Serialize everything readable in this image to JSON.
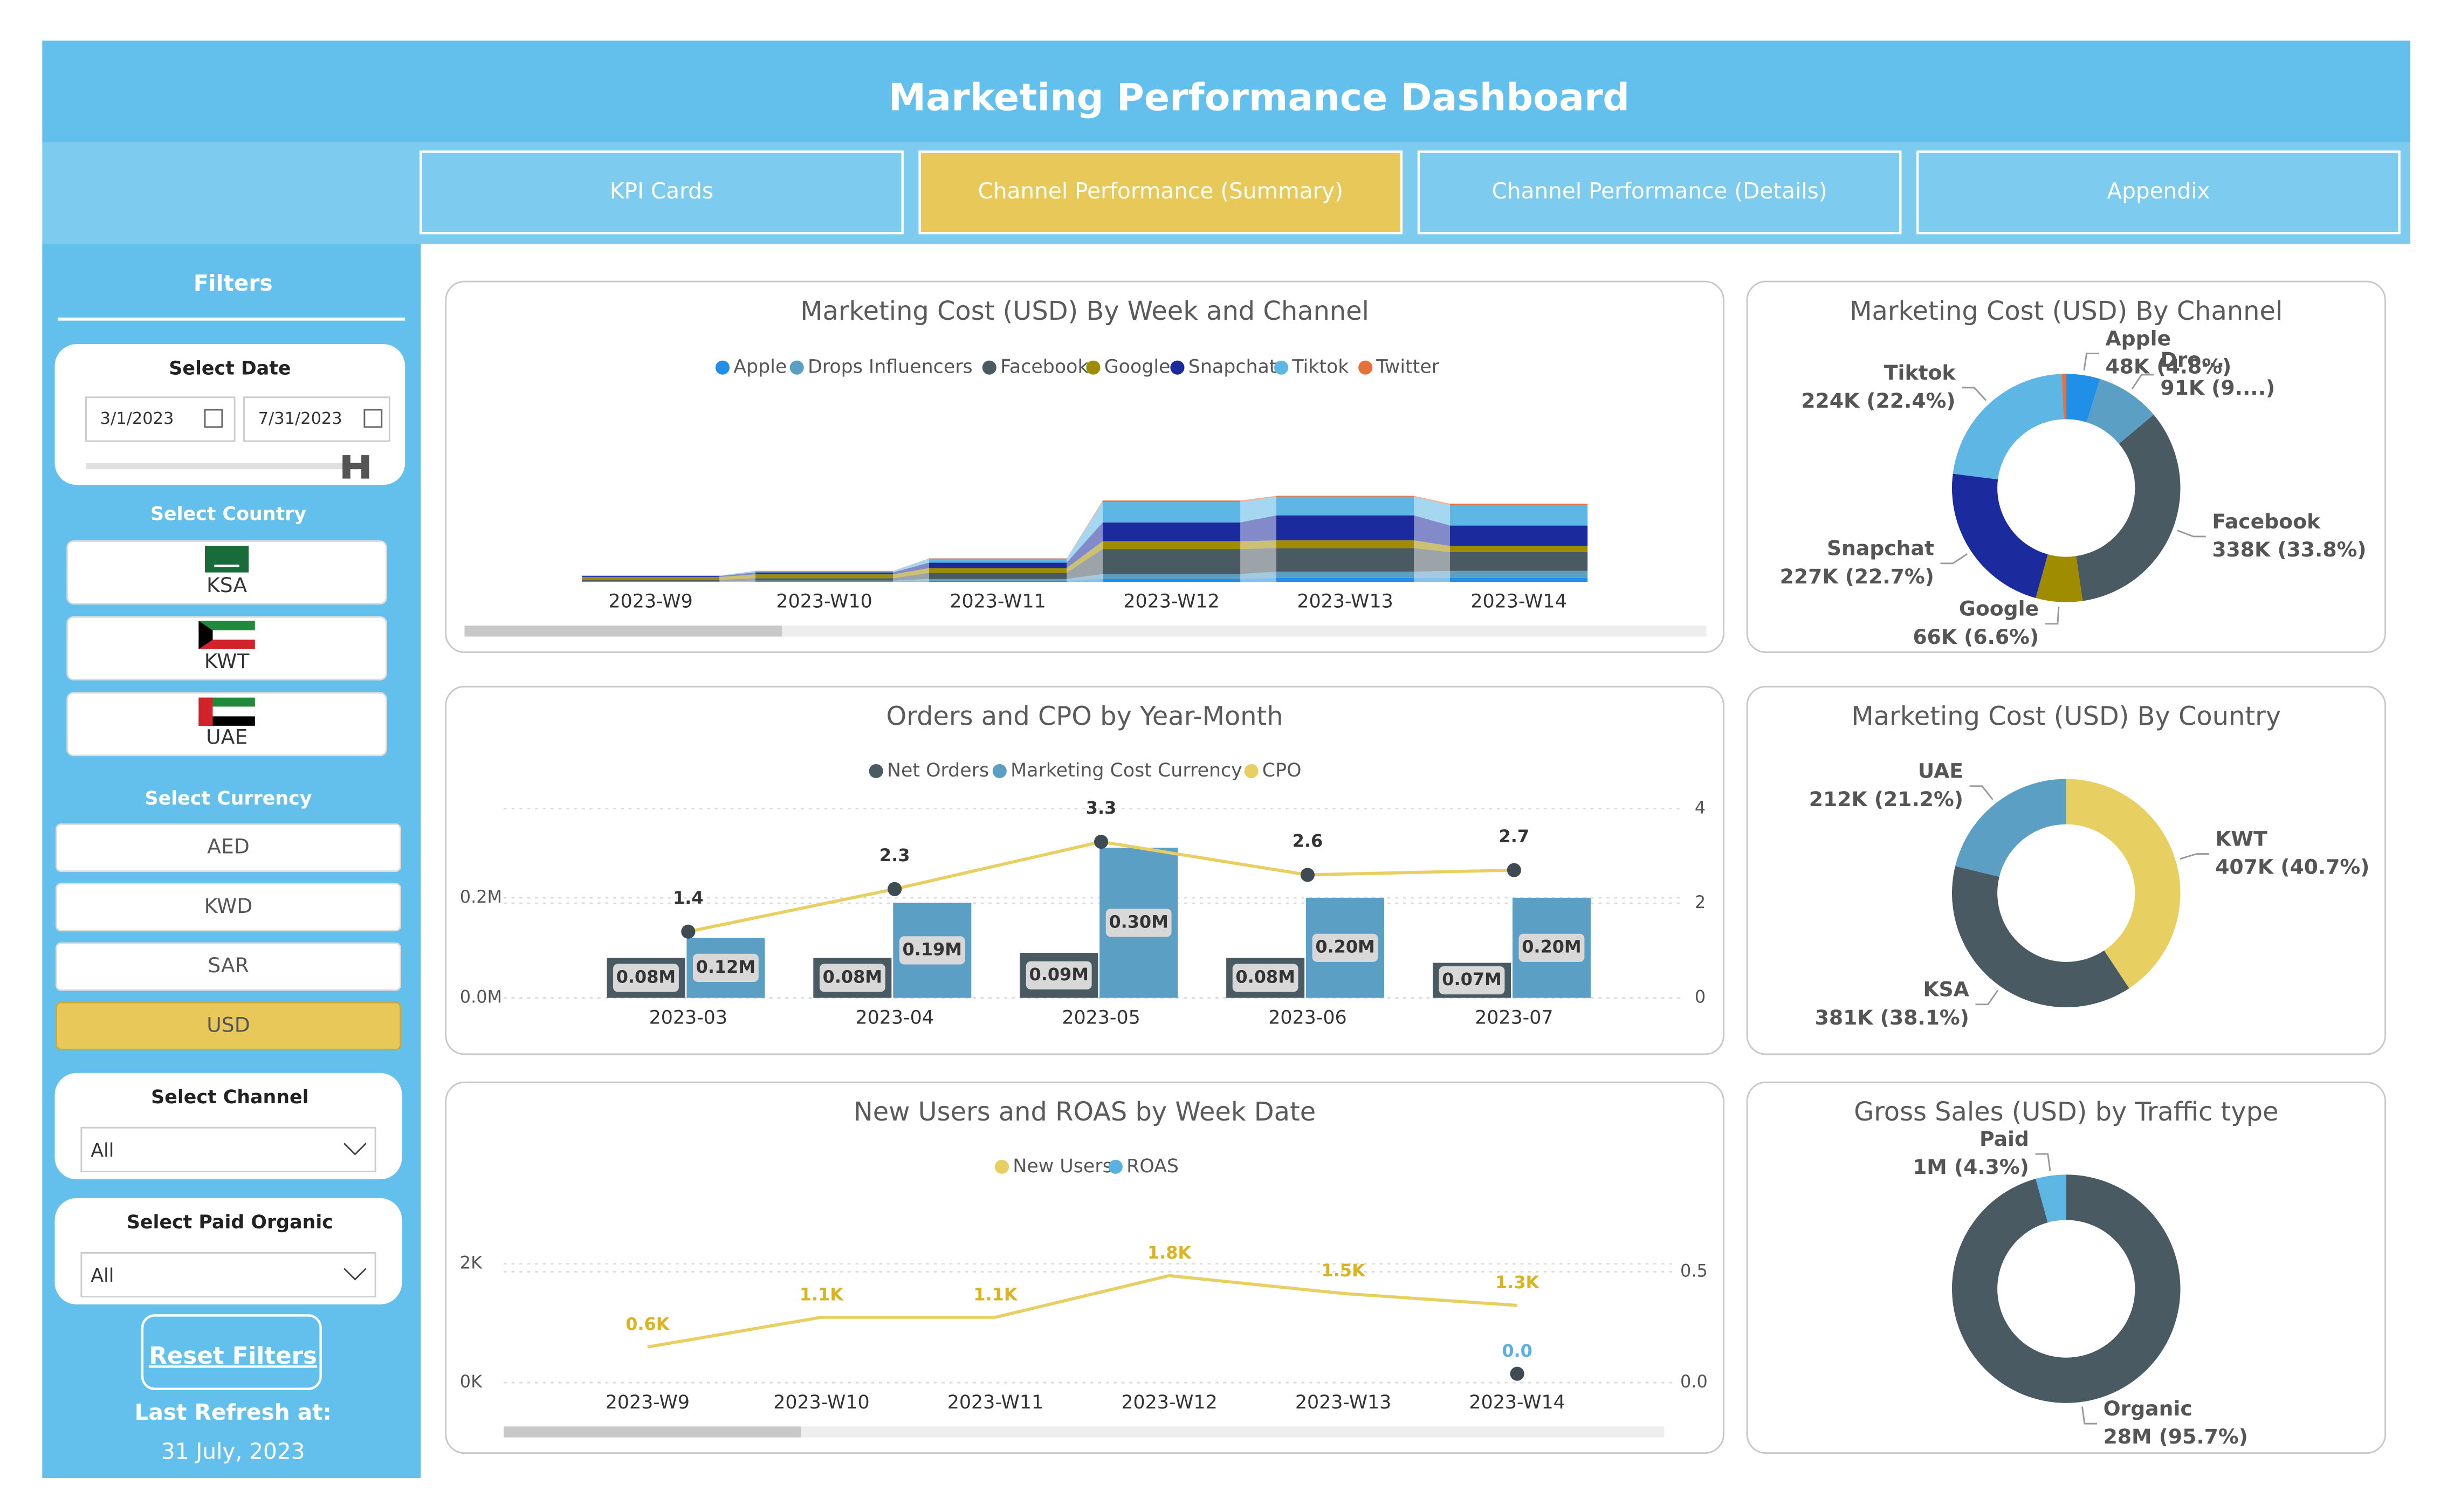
{
  "header": {
    "title": "Marketing Performance Dashboard"
  },
  "nav": {
    "tabs": [
      "KPI Cards",
      "Channel Performance (Summary)",
      "Channel Performance (Details)",
      "Appendix"
    ],
    "active": 1
  },
  "filters": {
    "title": "Filters",
    "date": {
      "label": "Select Date",
      "start": "3/1/2023",
      "end": "7/31/2023"
    },
    "country": {
      "label": "Select Country",
      "options": [
        "KSA",
        "KWT",
        "UAE"
      ]
    },
    "currency": {
      "label": "Select Currency",
      "options": [
        "AED",
        "KWD",
        "SAR",
        "USD"
      ],
      "selected": 3
    },
    "channel": {
      "label": "Select Channel",
      "value": "All"
    },
    "paid_organic": {
      "label": "Select Paid Organic",
      "value": "All"
    },
    "reset": "Reset Filters",
    "refresh_label": "Last Refresh at:",
    "refresh_date": "31 July, 2023"
  },
  "charts": [
    {
      "type": "ribbon",
      "title": "Marketing Cost (USD) By Week and Channel",
      "categories": [
        "2023-W9",
        "2023-W10",
        "2023-W11",
        "2023-W12",
        "2023-W13",
        "2023-W14"
      ],
      "series": [
        {
          "name": "Apple",
          "color": "#1f8fe8",
          "values": [
            200,
            300,
            800,
            2000,
            2500,
            2500
          ]
        },
        {
          "name": "Drops Influencers",
          "color": "#5b9fc4",
          "values": [
            300,
            500,
            1000,
            3000,
            4000,
            4500
          ]
        },
        {
          "name": "Facebook",
          "color": "#4a5a63",
          "values": [
            800,
            1500,
            4000,
            16000,
            15000,
            12000
          ]
        },
        {
          "name": "Google",
          "color": "#a08c00",
          "values": [
            1800,
            2500,
            3000,
            5000,
            5000,
            4000
          ]
        },
        {
          "name": "Snapchat",
          "color": "#1b2a9c",
          "values": [
            600,
            1200,
            3500,
            12000,
            16000,
            13000
          ]
        },
        {
          "name": "Tiktok",
          "color": "#5db6e4",
          "values": [
            300,
            800,
            2500,
            13000,
            12000,
            13000
          ]
        },
        {
          "name": "Twitter",
          "color": "#e8703a",
          "values": [
            0,
            200,
            200,
            1000,
            500,
            1000
          ]
        }
      ]
    },
    {
      "type": "combo",
      "title": "Orders and CPO by Year-Month",
      "categories": [
        "2023-03",
        "2023-04",
        "2023-05",
        "2023-06",
        "2023-07"
      ],
      "series": [
        {
          "name": "Net Orders",
          "color": "#4a5a63",
          "values": [
            0.08,
            0.08,
            0.09,
            0.08,
            0.07
          ],
          "value_labels": [
            "0.08M",
            "0.08M",
            "0.09M",
            "0.08M",
            "0.07M"
          ]
        },
        {
          "name": "Marketing Cost Currency",
          "color": "#5b9fc4",
          "values": [
            0.12,
            0.19,
            0.3,
            0.2,
            0.2
          ],
          "value_labels": [
            "0.12M",
            "0.19M",
            "0.30M",
            "0.20M",
            "0.20M"
          ]
        },
        {
          "name": "CPO",
          "color": "#e8cf62",
          "marker_color": "#3f4b52",
          "axis": "y2",
          "values": [
            1.4,
            2.3,
            3.3,
            2.6,
            2.7
          ]
        }
      ],
      "ylim": [
        0,
        0.378
      ],
      "yticks": [
        {
          "value": 0,
          "label": "0.0M"
        },
        {
          "value": 0.2,
          "label": "0.2M"
        }
      ],
      "y2lim": [
        0,
        4
      ],
      "y2ticks": [
        0,
        2,
        4
      ],
      "grid": true
    },
    {
      "type": "line",
      "title": "New Users and ROAS by Week Date",
      "categories": [
        "2023-W9",
        "2023-W10",
        "2023-W11",
        "2023-W12",
        "2023-W13",
        "2023-W14"
      ],
      "series": [
        {
          "name": "New Users",
          "color": "#e8cf62",
          "label_color": "#d9b420",
          "values": [
            600,
            1100,
            1100,
            1800,
            1500,
            1300
          ],
          "value_labels": [
            "0.6K",
            "1.1K",
            "1.1K",
            "1.8K",
            "1.5K",
            "1.3K"
          ]
        },
        {
          "name": "ROAS",
          "color": "#5ab0e0",
          "label_color": "#5ab0e0",
          "marker_color": "#3f4b52",
          "axis": "y2",
          "values": [
            null,
            null,
            null,
            null,
            null,
            0.04
          ],
          "value_labels": [
            null,
            null,
            null,
            null,
            null,
            "0.0"
          ]
        }
      ],
      "ylim": [
        0,
        2500
      ],
      "yticks": [
        {
          "value": 0,
          "label": "0K"
        },
        {
          "value": 2000,
          "label": "2K"
        }
      ],
      "y2lim": [
        0,
        0.67
      ],
      "y2ticks": [
        {
          "value": 0,
          "label": "0.0"
        },
        {
          "value": 0.5,
          "label": "0.5"
        }
      ],
      "grid": true
    },
    {
      "type": "donut",
      "title": "Marketing Cost (USD) By Channel",
      "categories": [
        "Apple",
        "Dro...",
        "Facebook",
        "Google",
        "Snapchat",
        "Tiktok",
        null
      ],
      "values": [
        48000,
        91000,
        338000,
        66000,
        227000,
        224000,
        6000
      ],
      "value_labels": [
        "48K (4.8%)",
        "91K (9....)",
        "338K (33.8%)",
        "66K (6.6%)",
        "227K (22.7%)",
        "224K (22.4%)",
        null
      ],
      "colors": [
        "#1f8fe8",
        "#5b9fc4",
        "#4a5a63",
        "#a08c00",
        "#1b2a9c",
        "#5db6e4",
        "#e8703a"
      ]
    },
    {
      "type": "donut",
      "title": "Marketing Cost (USD) By Country",
      "categories": [
        "KWT",
        "KSA",
        "UAE"
      ],
      "values": [
        407000,
        381000,
        212000
      ],
      "value_labels": [
        "407K (40.7%)",
        "381K (38.1%)",
        "212K (21.2%)"
      ],
      "colors": [
        "#e8cf62",
        "#4a5a63",
        "#5b9fc4"
      ]
    },
    {
      "type": "donut",
      "title": "Gross Sales (USD) by Traffic type",
      "categories": [
        "Organic",
        "Paid"
      ],
      "values": [
        28000000,
        1260000
      ],
      "value_labels": [
        "28M (95.7%)",
        "1M (4.3%)"
      ],
      "colors": [
        "#4a5a63",
        "#5db6e4"
      ]
    }
  ]
}
